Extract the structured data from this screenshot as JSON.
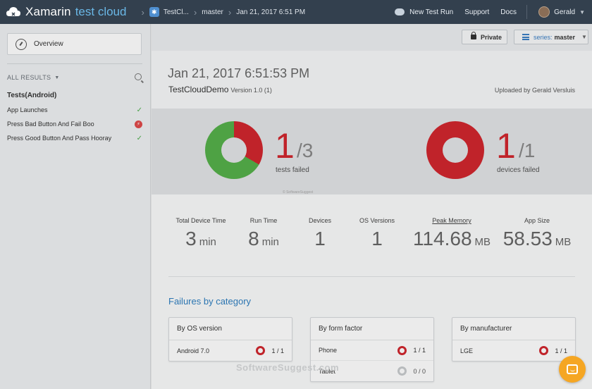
{
  "header": {
    "logo_main": "Xamarin",
    "logo_sub": "test cloud",
    "breadcrumbs": [
      "TestCl...",
      "master",
      "Jan 21, 2017 6:51 PM"
    ],
    "new_test_run": "New Test Run",
    "support": "Support",
    "docs": "Docs",
    "user": "Gerald"
  },
  "sidebar": {
    "overview": "Overview",
    "all_results": "ALL RESULTS",
    "suite": "Tests(Android)",
    "tests": [
      {
        "name": "App Launches",
        "status": "passed"
      },
      {
        "name": "Press Bad Button And Fail Boo",
        "status": "failed"
      },
      {
        "name": "Press Good Button And Pass Hooray",
        "status": "passed"
      }
    ]
  },
  "toolbar": {
    "private": "Private",
    "series_label": "series:",
    "series_value": "master"
  },
  "run": {
    "date": "Jan 21, 2017 6:51:53 PM",
    "app": "TestCloudDemo",
    "version": "Version 1.0 (1)",
    "uploaded_by": "Uploaded by Gerald Versluis"
  },
  "summary": {
    "tests_failed": {
      "num": "1",
      "den": "/3",
      "caption": "tests failed",
      "failed": 1,
      "total": 3
    },
    "devices_failed": {
      "num": "1",
      "den": "/1",
      "caption": "devices failed",
      "failed": 1,
      "total": 1
    },
    "tiny_watermark": "© SoftwareSuggest"
  },
  "stats": [
    {
      "label": "Total Device Time",
      "value": "3",
      "unit": "min"
    },
    {
      "label": "Run Time",
      "value": "8",
      "unit": "min"
    },
    {
      "label": "Devices",
      "value": "1",
      "unit": ""
    },
    {
      "label": "OS Versions",
      "value": "1",
      "unit": ""
    },
    {
      "label": "Peak Memory",
      "value": "114.68",
      "unit": "MB"
    },
    {
      "label": "App Size",
      "value": "58.53",
      "unit": "MB"
    }
  ],
  "failures": {
    "title": "Failures by category",
    "cards": [
      {
        "title": "By OS version",
        "rows": [
          {
            "name": "Android 7.0",
            "ratio": "1 / 1",
            "failed": true
          }
        ]
      },
      {
        "title": "By form factor",
        "rows": [
          {
            "name": "Phone",
            "ratio": "1 / 1",
            "failed": true
          },
          {
            "name": "Tablet",
            "ratio": "0 / 0",
            "failed": false
          }
        ]
      },
      {
        "title": "By manufacturer",
        "rows": [
          {
            "name": "LGE",
            "ratio": "1 / 1",
            "failed": true
          }
        ]
      }
    ]
  },
  "watermark": "SoftwareSuggest.com",
  "colors": {
    "topbar": "#33404e",
    "fail": "#d1272e",
    "pass": "#55b04a",
    "link": "#2f7fc1",
    "chat": "#f5a623"
  }
}
